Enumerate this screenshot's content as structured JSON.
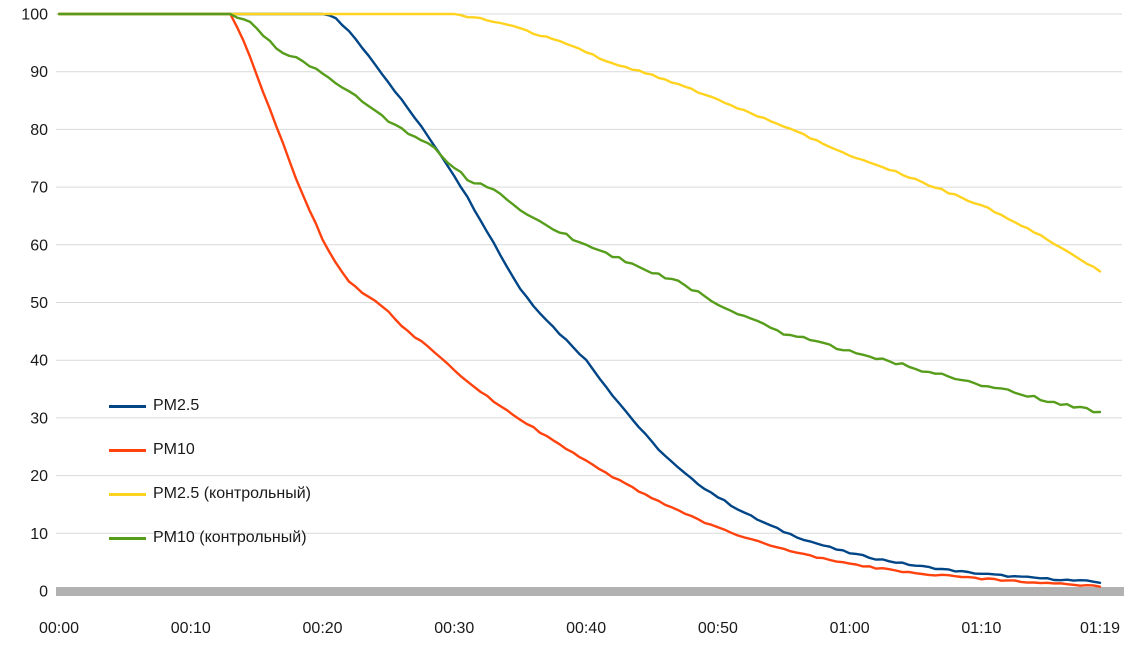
{
  "chart_data": {
    "type": "line",
    "title": "",
    "xlabel": "",
    "ylabel": "",
    "xlim": [
      0,
      79
    ],
    "ylim": [
      0,
      100
    ],
    "grid": "horizontal",
    "legend_position": "inside-left",
    "x_tick_labels": [
      "00:00",
      "00:10",
      "00:20",
      "00:30",
      "00:40",
      "00:50",
      "01:00",
      "01:10",
      "01:19"
    ],
    "x_tick_values": [
      0,
      10,
      20,
      30,
      40,
      50,
      60,
      70,
      79
    ],
    "y_ticks": [
      0,
      10,
      20,
      30,
      40,
      50,
      60,
      70,
      80,
      90,
      100
    ],
    "series": [
      {
        "name": "PM2.5",
        "color": "#004586",
        "x_start": 0,
        "x_step": 1,
        "values": [
          100,
          100,
          100,
          100,
          100,
          100,
          100,
          100,
          100,
          100,
          100,
          100,
          100,
          100,
          100,
          100,
          100,
          100,
          100,
          100,
          100,
          99.3,
          97,
          94.2,
          91.3,
          88.2,
          85.1,
          82,
          78.8,
          75.5,
          72,
          68.2,
          64.3,
          60.3,
          56.2,
          52.4,
          49.5,
          47,
          44.6,
          42.4,
          40,
          37,
          34,
          31.2,
          28.4,
          25.8,
          23.4,
          21.3,
          19.4,
          17.8,
          16.3,
          14.9,
          13.6,
          12.4,
          11.3,
          10.3,
          9.4,
          8.6,
          7.9,
          7.2,
          6.6,
          6.1,
          5.6,
          5.2,
          4.8,
          4.4,
          4.1,
          3.8,
          3.5,
          3.2,
          3,
          2.8,
          2.6,
          2.4,
          2.3,
          2.1,
          2,
          1.8,
          1.7,
          1.5
        ]
      },
      {
        "name": "PM10",
        "color": "#FF420E",
        "x_start": 0,
        "x_step": 1,
        "values": [
          100,
          100,
          100,
          100,
          100,
          100,
          100,
          100,
          100,
          100,
          100,
          100,
          100,
          100,
          95.5,
          89.5,
          83.5,
          77.5,
          71.5,
          66,
          61,
          56.8,
          53.5,
          51.8,
          50.3,
          48.5,
          46,
          44,
          42.5,
          40.3,
          38.3,
          36.4,
          34.6,
          32.9,
          31.3,
          29.8,
          28.3,
          26.8,
          25.3,
          23.9,
          22.5,
          21.1,
          19.8,
          18.5,
          17.3,
          16.1,
          15,
          13.9,
          12.9,
          11.9,
          11,
          10.1,
          9.3,
          8.6,
          7.9,
          7.2,
          6.6,
          6.1,
          5.6,
          5.1,
          4.7,
          4.3,
          4,
          3.7,
          3.4,
          3.1,
          2.9,
          2.7,
          2.5,
          2.3,
          2.1,
          2,
          1.8,
          1.7,
          1.5,
          1.4,
          1.3,
          1.1,
          1,
          0.8
        ]
      },
      {
        "name": "PM2.5 (контрольный)",
        "color": "#FFD320",
        "x_start": 0,
        "x_step": 1,
        "values": [
          100,
          100,
          100,
          100,
          100,
          100,
          100,
          100,
          100,
          100,
          100,
          100,
          100,
          100,
          100,
          100,
          100,
          100,
          100,
          100,
          100,
          100,
          100,
          100,
          100,
          100,
          100,
          100,
          100,
          100,
          100,
          99.6,
          99.2,
          98.7,
          98.1,
          97.4,
          96.7,
          96,
          95.2,
          94.4,
          93.5,
          92.3,
          91.4,
          90.8,
          90.1,
          89.4,
          88.6,
          87.8,
          86.9,
          86,
          85.1,
          84.2,
          83.3,
          82.4,
          81.5,
          80.5,
          79.6,
          78.6,
          77.6,
          76.6,
          75.6,
          74.7,
          73.9,
          73.1,
          72.2,
          71.3,
          70.4,
          69.5,
          68.6,
          67.7,
          66.8,
          65.8,
          64.6,
          63.4,
          62.2,
          61,
          59.6,
          58.2,
          56.8,
          55.4
        ]
      },
      {
        "name": "PM10 (контрольный)",
        "color": "#579D1C",
        "x_start": 0,
        "x_step": 1,
        "values": [
          100,
          100,
          100,
          100,
          100,
          100,
          100,
          100,
          100,
          100,
          100,
          100,
          100,
          100,
          99.2,
          97.6,
          95.3,
          93.2,
          92.6,
          91.2,
          89.6,
          88.1,
          86.6,
          85,
          83.2,
          81.6,
          80.1,
          78.7,
          77.6,
          75.6,
          73.4,
          71.3,
          70.4,
          69.6,
          67.6,
          66.1,
          64.6,
          63.2,
          62.2,
          61.1,
          60.2,
          59.2,
          58.1,
          57.1,
          56.2,
          55.3,
          54.2,
          53.6,
          52.4,
          51,
          49.6,
          48.6,
          47.6,
          46.8,
          45.7,
          44.7,
          44.1,
          43.5,
          42.8,
          42.2,
          41.6,
          41,
          40.4,
          39.8,
          39.2,
          38.6,
          38,
          37.4,
          36.8,
          36.2,
          35.7,
          35.2,
          34.7,
          34.2,
          33.6,
          33,
          32.5,
          32,
          31.5,
          31
        ]
      }
    ]
  },
  "colors": {
    "background": "#ffffff",
    "grid": "#d9d9d9",
    "axis_bar": "#b2b2b2",
    "text": "#1a1a1a"
  }
}
